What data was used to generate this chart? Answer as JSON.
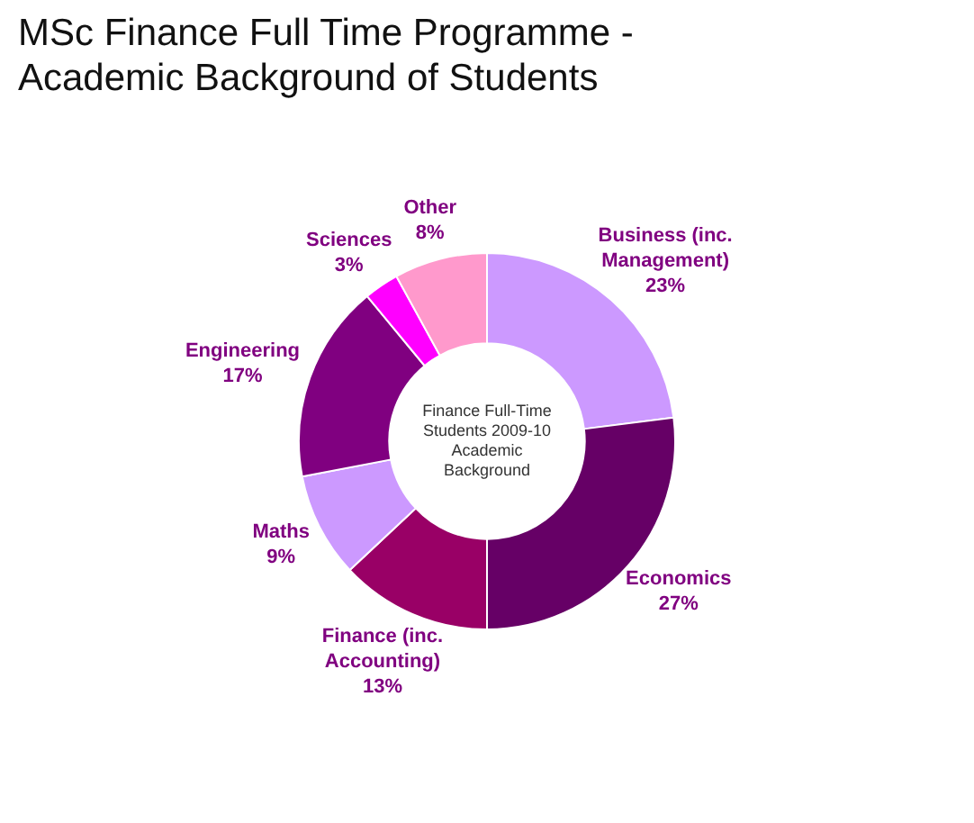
{
  "chart_data": {
    "type": "donut",
    "title": "MSc Finance Full Time Programme - Academic Background of Students",
    "categories": [
      "Business (inc. Management)",
      "Economics",
      "Finance (inc. Accounting)",
      "Maths",
      "Engineering",
      "Sciences",
      "Other"
    ],
    "values": [
      23,
      27,
      13,
      9,
      17,
      3,
      8
    ],
    "value_labels": [
      "23%",
      "27%",
      "13%",
      "9%",
      "17%",
      "3%",
      "8%"
    ],
    "colors": [
      "#cc99ff",
      "#660066",
      "#990066",
      "#cc99ff",
      "#800080",
      "#ff00ff",
      "#ff99cc"
    ],
    "annotations": [
      "Finance Full-Time Students 2009-10 Academic Background"
    ],
    "legend": false
  }
}
